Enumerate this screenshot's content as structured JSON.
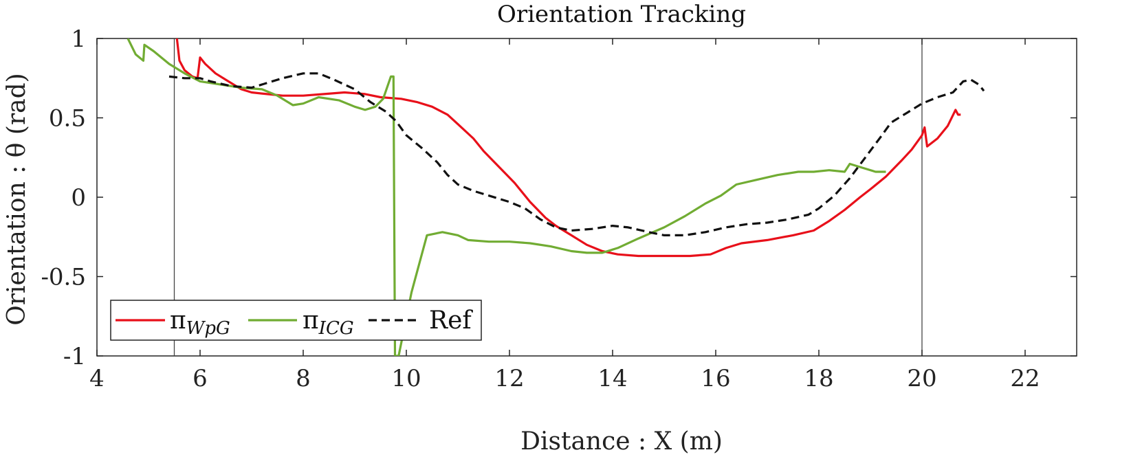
{
  "chart_data": {
    "type": "line",
    "title": "Orientation Tracking",
    "xlabel": "Distance : X (m)",
    "ylabel": "Orientation : θ (rad)",
    "xlim": [
      4,
      23
    ],
    "ylim": [
      -1,
      1
    ],
    "xticks": [
      "4",
      "6",
      "8",
      "10",
      "12",
      "14",
      "16",
      "18",
      "20",
      "22"
    ],
    "yticks": [
      "1",
      "0.5",
      "0",
      "-0.5",
      "-1"
    ],
    "vlines": [
      5.5,
      20
    ],
    "grid": false,
    "legend_position": "bottom-left",
    "series": [
      {
        "name": "π",
        "name_sub": "WpG",
        "color": "#e8101a",
        "dash": "solid",
        "points": [
          [
            5.55,
            1.0
          ],
          [
            5.6,
            0.86
          ],
          [
            5.7,
            0.8
          ],
          [
            5.85,
            0.76
          ],
          [
            5.95,
            0.75
          ],
          [
            6.0,
            0.88
          ],
          [
            6.1,
            0.84
          ],
          [
            6.3,
            0.78
          ],
          [
            6.5,
            0.74
          ],
          [
            6.8,
            0.68
          ],
          [
            7.0,
            0.66
          ],
          [
            7.3,
            0.65
          ],
          [
            7.6,
            0.64
          ],
          [
            8.0,
            0.64
          ],
          [
            8.4,
            0.65
          ],
          [
            8.8,
            0.66
          ],
          [
            9.2,
            0.65
          ],
          [
            9.5,
            0.63
          ],
          [
            9.9,
            0.62
          ],
          [
            10.2,
            0.6
          ],
          [
            10.5,
            0.57
          ],
          [
            10.8,
            0.52
          ],
          [
            11.0,
            0.46
          ],
          [
            11.3,
            0.37
          ],
          [
            11.5,
            0.29
          ],
          [
            11.8,
            0.19
          ],
          [
            12.1,
            0.09
          ],
          [
            12.4,
            -0.03
          ],
          [
            12.7,
            -0.13
          ],
          [
            12.9,
            -0.18
          ],
          [
            13.2,
            -0.24
          ],
          [
            13.5,
            -0.3
          ],
          [
            13.8,
            -0.34
          ],
          [
            14.1,
            -0.36
          ],
          [
            14.5,
            -0.37
          ],
          [
            15.0,
            -0.37
          ],
          [
            15.5,
            -0.37
          ],
          [
            15.9,
            -0.36
          ],
          [
            16.2,
            -0.32
          ],
          [
            16.5,
            -0.29
          ],
          [
            17.0,
            -0.27
          ],
          [
            17.5,
            -0.24
          ],
          [
            17.9,
            -0.21
          ],
          [
            18.2,
            -0.15
          ],
          [
            18.5,
            -0.08
          ],
          [
            18.8,
            0.0
          ],
          [
            19.0,
            0.05
          ],
          [
            19.3,
            0.13
          ],
          [
            19.6,
            0.23
          ],
          [
            19.8,
            0.3
          ],
          [
            20.0,
            0.39
          ],
          [
            20.05,
            0.44
          ],
          [
            20.1,
            0.32
          ],
          [
            20.3,
            0.37
          ],
          [
            20.5,
            0.45
          ],
          [
            20.65,
            0.55
          ],
          [
            20.7,
            0.52
          ],
          [
            20.75,
            0.52
          ]
        ]
      },
      {
        "name": "π",
        "name_sub": "ICG",
        "color": "#71ac33",
        "dash": "solid",
        "points": [
          [
            4.6,
            1.0
          ],
          [
            4.75,
            0.9
          ],
          [
            4.9,
            0.86
          ],
          [
            4.92,
            0.96
          ],
          [
            5.1,
            0.92
          ],
          [
            5.4,
            0.84
          ],
          [
            5.7,
            0.78
          ],
          [
            6.0,
            0.73
          ],
          [
            6.4,
            0.71
          ],
          [
            6.8,
            0.69
          ],
          [
            7.2,
            0.68
          ],
          [
            7.5,
            0.64
          ],
          [
            7.8,
            0.58
          ],
          [
            8.0,
            0.59
          ],
          [
            8.3,
            0.63
          ],
          [
            8.7,
            0.61
          ],
          [
            9.0,
            0.57
          ],
          [
            9.2,
            0.55
          ],
          [
            9.4,
            0.57
          ],
          [
            9.55,
            0.62
          ],
          [
            9.7,
            0.76
          ],
          [
            9.75,
            0.76
          ],
          [
            9.78,
            -1.0
          ],
          [
            9.85,
            -1.0
          ],
          [
            10.1,
            -0.6
          ],
          [
            10.4,
            -0.24
          ],
          [
            10.7,
            -0.22
          ],
          [
            11.0,
            -0.24
          ],
          [
            11.2,
            -0.27
          ],
          [
            11.6,
            -0.28
          ],
          [
            12.0,
            -0.28
          ],
          [
            12.4,
            -0.29
          ],
          [
            12.8,
            -0.31
          ],
          [
            13.2,
            -0.34
          ],
          [
            13.5,
            -0.35
          ],
          [
            13.8,
            -0.35
          ],
          [
            14.1,
            -0.32
          ],
          [
            14.5,
            -0.26
          ],
          [
            15.0,
            -0.19
          ],
          [
            15.4,
            -0.12
          ],
          [
            15.8,
            -0.04
          ],
          [
            16.1,
            0.01
          ],
          [
            16.4,
            0.08
          ],
          [
            16.8,
            0.11
          ],
          [
            17.2,
            0.14
          ],
          [
            17.6,
            0.16
          ],
          [
            17.9,
            0.16
          ],
          [
            18.2,
            0.17
          ],
          [
            18.5,
            0.16
          ],
          [
            18.6,
            0.21
          ],
          [
            18.8,
            0.19
          ],
          [
            19.1,
            0.16
          ],
          [
            19.3,
            0.16
          ]
        ]
      },
      {
        "name": "Ref",
        "color": "#111111",
        "dash": "dashed",
        "points": [
          [
            5.4,
            0.76
          ],
          [
            5.7,
            0.75
          ],
          [
            6.0,
            0.75
          ],
          [
            6.2,
            0.73
          ],
          [
            6.6,
            0.7
          ],
          [
            7.0,
            0.69
          ],
          [
            7.3,
            0.72
          ],
          [
            7.6,
            0.75
          ],
          [
            8.0,
            0.78
          ],
          [
            8.3,
            0.78
          ],
          [
            8.6,
            0.74
          ],
          [
            9.0,
            0.68
          ],
          [
            9.3,
            0.6
          ],
          [
            9.6,
            0.54
          ],
          [
            9.8,
            0.48
          ],
          [
            10.0,
            0.39
          ],
          [
            10.3,
            0.31
          ],
          [
            10.6,
            0.22
          ],
          [
            10.8,
            0.14
          ],
          [
            11.0,
            0.08
          ],
          [
            11.3,
            0.04
          ],
          [
            11.6,
            0.01
          ],
          [
            12.0,
            -0.03
          ],
          [
            12.3,
            -0.07
          ],
          [
            12.6,
            -0.14
          ],
          [
            12.9,
            -0.19
          ],
          [
            13.2,
            -0.21
          ],
          [
            13.6,
            -0.2
          ],
          [
            14.0,
            -0.18
          ],
          [
            14.3,
            -0.19
          ],
          [
            14.7,
            -0.22
          ],
          [
            15.0,
            -0.24
          ],
          [
            15.4,
            -0.24
          ],
          [
            15.8,
            -0.22
          ],
          [
            16.2,
            -0.19
          ],
          [
            16.6,
            -0.17
          ],
          [
            17.0,
            -0.16
          ],
          [
            17.4,
            -0.14
          ],
          [
            17.8,
            -0.11
          ],
          [
            18.0,
            -0.07
          ],
          [
            18.3,
            0.01
          ],
          [
            18.6,
            0.12
          ],
          [
            18.9,
            0.25
          ],
          [
            19.2,
            0.38
          ],
          [
            19.4,
            0.47
          ],
          [
            19.7,
            0.53
          ],
          [
            20.0,
            0.59
          ],
          [
            20.3,
            0.63
          ],
          [
            20.6,
            0.66
          ],
          [
            20.8,
            0.73
          ],
          [
            20.95,
            0.74
          ],
          [
            21.1,
            0.71
          ],
          [
            21.2,
            0.67
          ]
        ]
      }
    ]
  }
}
